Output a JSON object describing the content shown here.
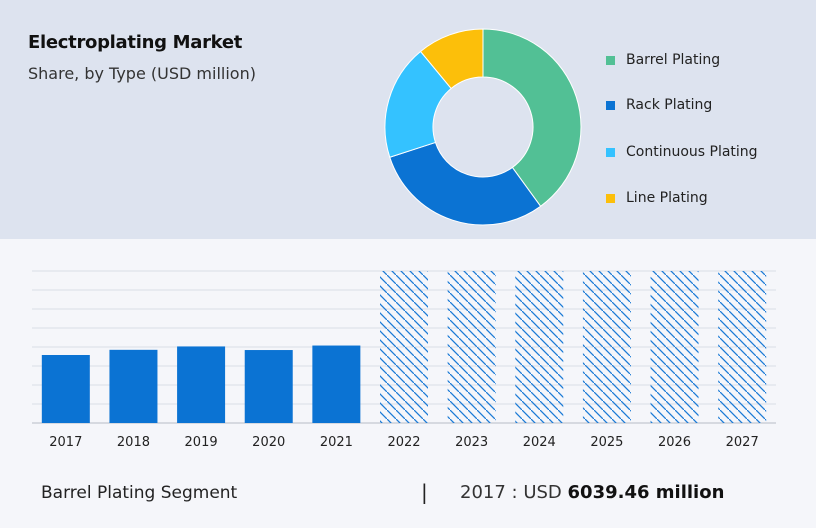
{
  "header": {
    "title": "Electroplating Market",
    "subtitle": "Share, by Type (USD million)"
  },
  "chart_data": [
    {
      "type": "pie",
      "variant": "donut",
      "categories": [
        "Barrel Plating",
        "Rack Plating",
        "Continuous Plating",
        "Line Plating"
      ],
      "values": [
        40,
        30,
        19,
        11
      ],
      "colors": [
        "#52c095",
        "#0b73d3",
        "#34c2ff",
        "#fcbf0a"
      ],
      "legend": "right"
    },
    {
      "type": "bar",
      "categories": [
        "2017",
        "2018",
        "2019",
        "2020",
        "2021",
        "2022",
        "2023",
        "2024",
        "2025",
        "2026",
        "2027"
      ],
      "series": [
        {
          "values": [
            6039.46,
            6500,
            6800,
            6480,
            6880,
            null,
            null,
            null,
            null,
            null,
            null
          ]
        }
      ],
      "forecast_categories": [
        "2022",
        "2023",
        "2024",
        "2025",
        "2026",
        "2027"
      ],
      "bar_color": "#0b73d3",
      "forecast_pattern_color": "#1b7ad6",
      "ylim": [
        0,
        13500
      ],
      "grid": true
    }
  ],
  "footer": {
    "segment_label": "Barrel Plating Segment",
    "separator": "|",
    "value_prefix": "2017 : USD",
    "value_amount": "6039.46 million"
  }
}
